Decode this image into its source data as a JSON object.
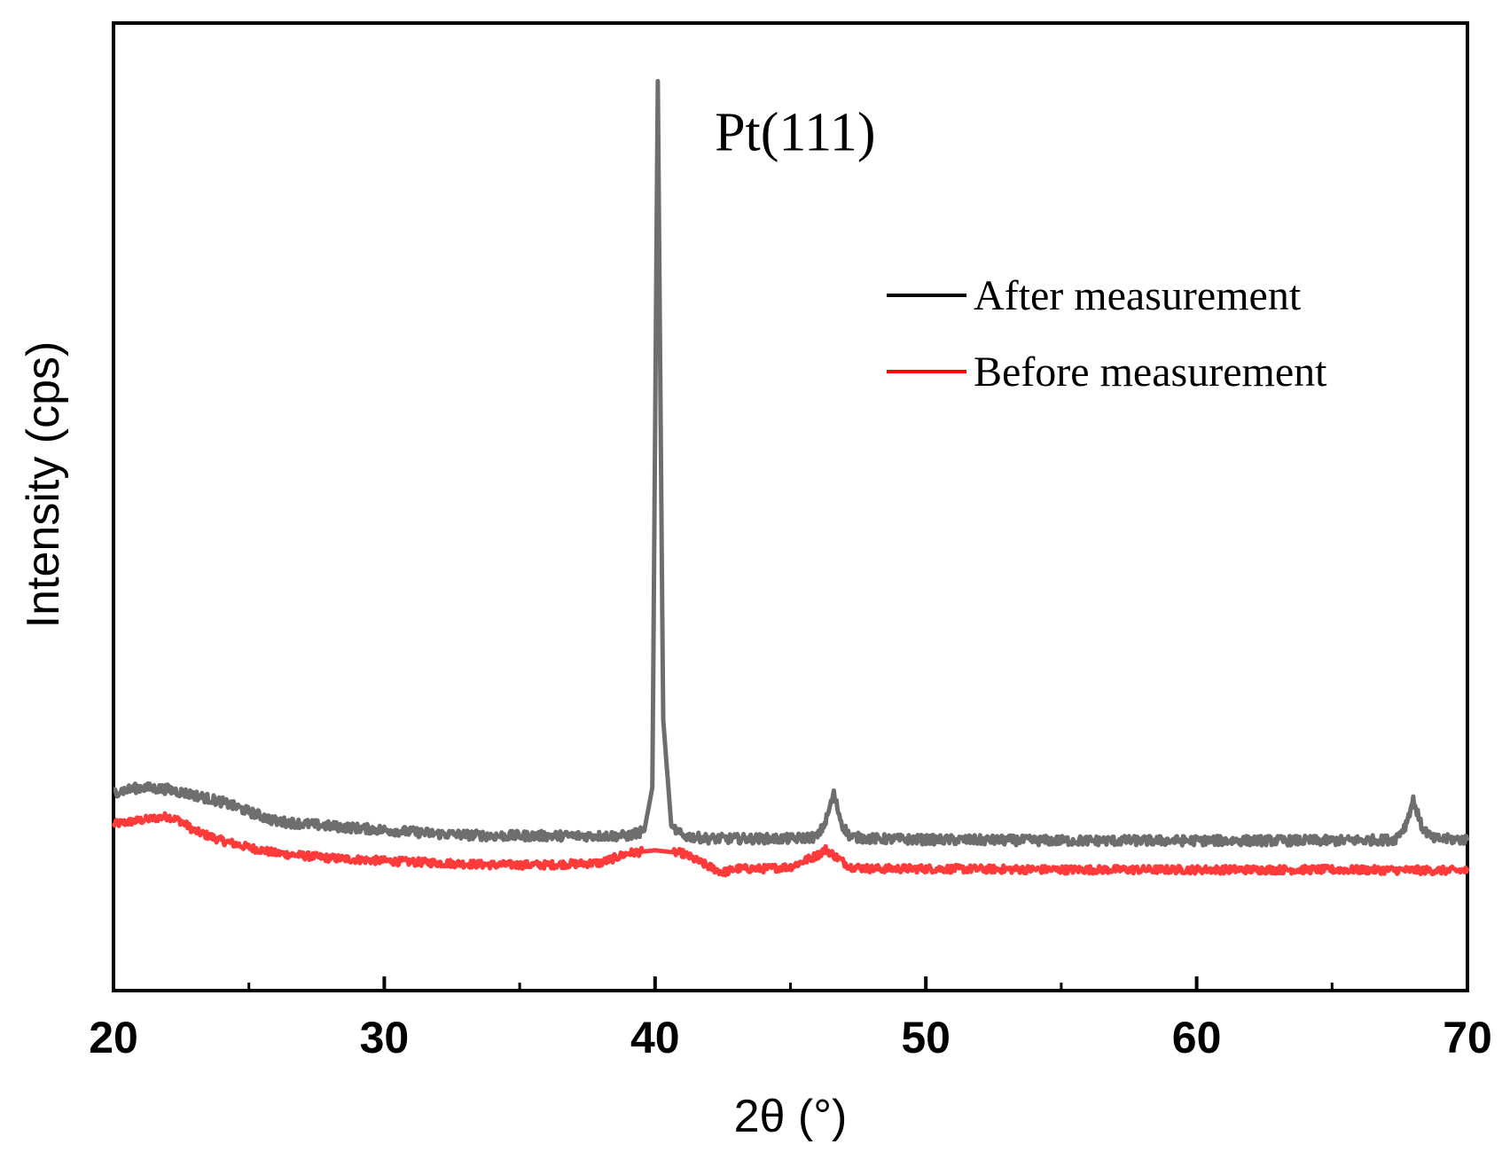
{
  "chart_data": {
    "type": "line",
    "title": "",
    "xlabel": "2θ (°)",
    "ylabel": "Intensity (cps)",
    "xlim": [
      20,
      70
    ],
    "ylim": [
      0,
      1000
    ],
    "xticks": [
      20,
      30,
      40,
      50,
      60,
      70
    ],
    "xticks_minor": [
      25,
      35,
      45,
      55,
      65
    ],
    "yticks_visible": false,
    "grid": false,
    "legend_position": "top-right",
    "annotations": [
      {
        "text": "Pt(111)",
        "x": 45.5,
        "y": 885
      }
    ],
    "series": [
      {
        "name": "After measurement",
        "color": "#6e6e6e",
        "legend_color": "#000000",
        "noise": 5,
        "x": [
          20,
          21,
          22,
          23,
          24,
          25,
          26,
          28,
          30,
          32,
          34,
          36,
          38,
          39,
          39.6,
          39.9,
          40.1,
          40.3,
          40.6,
          41,
          42,
          45,
          46.0,
          46.3,
          46.6,
          46.9,
          47.2,
          48,
          50,
          55,
          60,
          65,
          67.3,
          67.7,
          68.0,
          68.3,
          68.7,
          70
        ],
        "y": [
          205,
          210,
          208,
          202,
          195,
          185,
          175,
          170,
          166,
          162,
          160,
          160,
          160,
          160,
          165,
          210,
          940,
          280,
          170,
          160,
          157,
          157,
          159,
          175,
          203,
          172,
          159,
          157,
          156,
          155,
          155,
          155,
          156,
          170,
          197,
          170,
          157,
          156
        ]
      },
      {
        "name": "Before measurement",
        "color": "#ff3a3a",
        "legend_color": "#ff0000",
        "noise": 4,
        "x": [
          20,
          21,
          22,
          22.5,
          23,
          24,
          25,
          26,
          28,
          30,
          32,
          34,
          36,
          38,
          39,
          40,
          41,
          42,
          42.5,
          43,
          44,
          45,
          46.0,
          46.3,
          46.6,
          47.2,
          48,
          50,
          55,
          60,
          65,
          70
        ],
        "y": [
          172,
          176,
          180,
          175,
          165,
          155,
          148,
          142,
          137,
          134,
          132,
          130,
          130,
          132,
          142,
          145,
          142,
          128,
          122,
          126,
          126,
          128,
          140,
          146,
          140,
          128,
          126,
          126,
          125,
          125,
          125,
          124
        ]
      }
    ]
  }
}
